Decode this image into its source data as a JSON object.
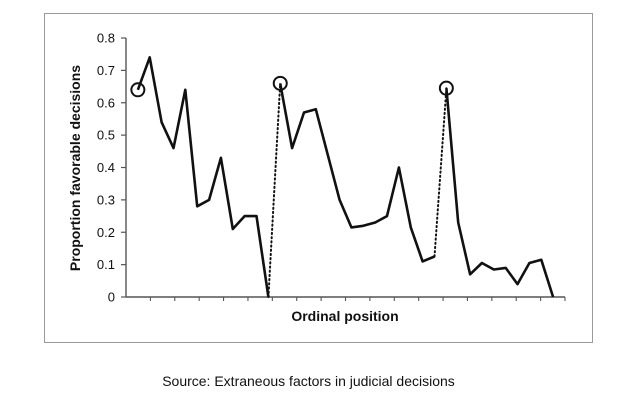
{
  "caption": "Source: Extraneous factors in judicial decisions",
  "chart_data": {
    "type": "line",
    "title": "",
    "xlabel": "Ordinal position",
    "ylabel": "Proportion favorable decisions",
    "ylim": [
      0,
      0.8
    ],
    "yticks": [
      "0",
      "0.1",
      "0.2",
      "0.3",
      "0.4",
      "0.5",
      "0.6",
      "0.7",
      "0.8"
    ],
    "grid": false,
    "legend": "none",
    "line_color": "#111111",
    "series": [
      {
        "style": "solid",
        "points": [
          {
            "x": 1,
            "y": 0.64
          },
          {
            "x": 2,
            "y": 0.74
          },
          {
            "x": 3,
            "y": 0.54
          },
          {
            "x": 4,
            "y": 0.46
          },
          {
            "x": 5,
            "y": 0.64
          },
          {
            "x": 6,
            "y": 0.28
          },
          {
            "x": 7,
            "y": 0.3
          },
          {
            "x": 8,
            "y": 0.43
          },
          {
            "x": 9,
            "y": 0.21
          },
          {
            "x": 10,
            "y": 0.25
          },
          {
            "x": 11,
            "y": 0.25
          },
          {
            "x": 12,
            "y": 0
          }
        ]
      },
      {
        "style": "dotted",
        "points": [
          {
            "x": 12,
            "y": 0
          },
          {
            "x": 13,
            "y": 0.66
          }
        ]
      },
      {
        "style": "solid",
        "points": [
          {
            "x": 13,
            "y": 0.66
          },
          {
            "x": 14,
            "y": 0.46
          },
          {
            "x": 15,
            "y": 0.57
          },
          {
            "x": 16,
            "y": 0.58
          },
          {
            "x": 17,
            "y": 0.44
          },
          {
            "x": 18,
            "y": 0.3
          },
          {
            "x": 19,
            "y": 0.215
          },
          {
            "x": 20,
            "y": 0.22
          },
          {
            "x": 21,
            "y": 0.23
          },
          {
            "x": 22,
            "y": 0.25
          },
          {
            "x": 23,
            "y": 0.4
          },
          {
            "x": 24,
            "y": 0.215
          },
          {
            "x": 25,
            "y": 0.11
          },
          {
            "x": 26,
            "y": 0.125
          }
        ]
      },
      {
        "style": "dotted",
        "points": [
          {
            "x": 26,
            "y": 0.125
          },
          {
            "x": 27,
            "y": 0.645
          }
        ]
      },
      {
        "style": "solid",
        "points": [
          {
            "x": 27,
            "y": 0.645
          },
          {
            "x": 28,
            "y": 0.23
          },
          {
            "x": 29,
            "y": 0.07
          },
          {
            "x": 30,
            "y": 0.105
          },
          {
            "x": 31,
            "y": 0.085
          },
          {
            "x": 32,
            "y": 0.09
          },
          {
            "x": 33,
            "y": 0.04
          },
          {
            "x": 34,
            "y": 0.105
          },
          {
            "x": 35,
            "y": 0.115
          },
          {
            "x": 36,
            "y": 0
          }
        ]
      }
    ],
    "circled_points": [
      {
        "x": 1,
        "y": 0.64
      },
      {
        "x": 13,
        "y": 0.66
      },
      {
        "x": 27,
        "y": 0.645
      }
    ]
  }
}
